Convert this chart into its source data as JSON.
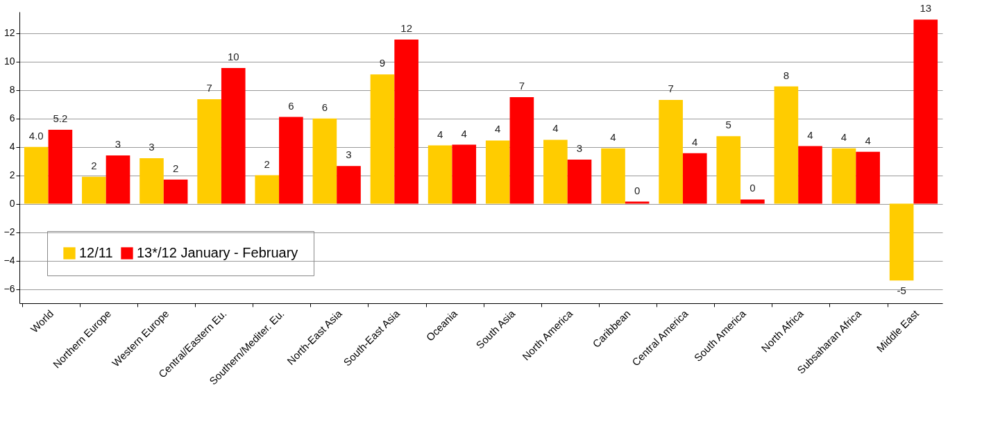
{
  "chart_data": {
    "type": "bar",
    "categories": [
      "World",
      "Northern Europe",
      "Western Europe",
      "Central/Eastern Eu.",
      "Southern/Mediter. Eu.",
      "North-East Asia",
      "South-East Asia",
      "Oceania",
      "South Asia",
      "North America",
      "Caribbean",
      "Central America",
      "South America",
      "North Africa",
      "Subsaharan Africa",
      "Middle East"
    ],
    "series": [
      {
        "name": "12/11",
        "color": "#ffcc00",
        "values": [
          4.0,
          1.9,
          3.2,
          7.35,
          2.0,
          6.0,
          9.1,
          4.1,
          4.45,
          4.5,
          3.9,
          7.3,
          4.75,
          8.25,
          3.9,
          -5.4
        ],
        "value_labels": [
          "4.0",
          "2",
          "3",
          "7",
          "2",
          "6",
          "9",
          "4",
          "4",
          "4",
          "4",
          "7",
          "5",
          "8",
          "4",
          "-5"
        ]
      },
      {
        "name": "13*/12 January - February",
        "color": "#ff0000",
        "values": [
          5.2,
          3.4,
          1.7,
          9.55,
          6.1,
          2.65,
          11.55,
          4.15,
          7.5,
          3.1,
          0.15,
          3.55,
          0.3,
          4.05,
          3.65,
          12.95
        ],
        "value_labels": [
          "5.2",
          "3",
          "2",
          "10",
          "6",
          "3",
          "12",
          "4",
          "7",
          "3",
          "0",
          "4",
          "0",
          "4",
          "4",
          "13"
        ]
      }
    ],
    "ylim": [
      -7,
      13.5
    ],
    "yticks": [
      -6,
      -4,
      -2,
      0,
      2,
      4,
      6,
      8,
      10,
      12
    ],
    "grid": "y",
    "legend": "bottom left"
  }
}
